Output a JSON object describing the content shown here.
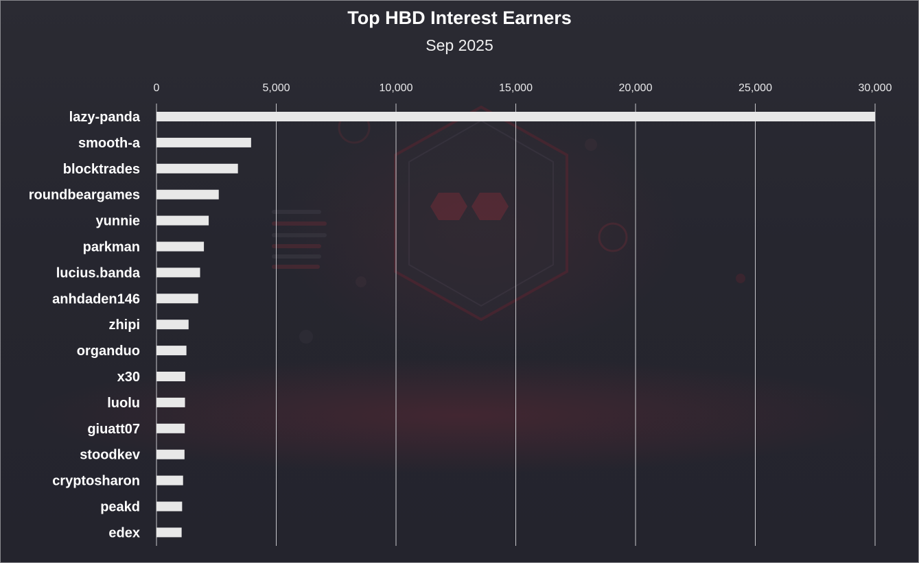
{
  "chart_data": {
    "type": "bar",
    "orientation": "horizontal",
    "title": "Top HBD Interest Earners",
    "subtitle": "Sep 2025",
    "xlabel": "",
    "ylabel": "",
    "xlim": [
      0,
      30000
    ],
    "x_ticks": [
      0,
      5000,
      10000,
      15000,
      20000,
      25000,
      30000
    ],
    "x_tick_labels": [
      "0",
      "5,000",
      "10,000",
      "15,000",
      "20,000",
      "25,000",
      "30,000"
    ],
    "x_axis_position": "top",
    "grid": "vertical",
    "legend": "none",
    "categories": [
      "lazy-panda",
      "smooth-a",
      "blocktrades",
      "roundbeargames",
      "yunnie",
      "parkman",
      "lucius.banda",
      "anhdaden146",
      "zhipi",
      "organduo",
      "x30",
      "luolu",
      "giuatt07",
      "stoodkev",
      "cryptosharon",
      "peakd",
      "edex"
    ],
    "values": [
      30000,
      3950,
      3400,
      2600,
      2180,
      1980,
      1820,
      1740,
      1340,
      1250,
      1200,
      1190,
      1180,
      1170,
      1110,
      1070,
      1050
    ]
  },
  "colors": {
    "bar": "#e8e8e8",
    "gridline": "#c8c8cc",
    "text": "#ffffff",
    "background": "#26262f",
    "accent": "#6e2a36"
  }
}
